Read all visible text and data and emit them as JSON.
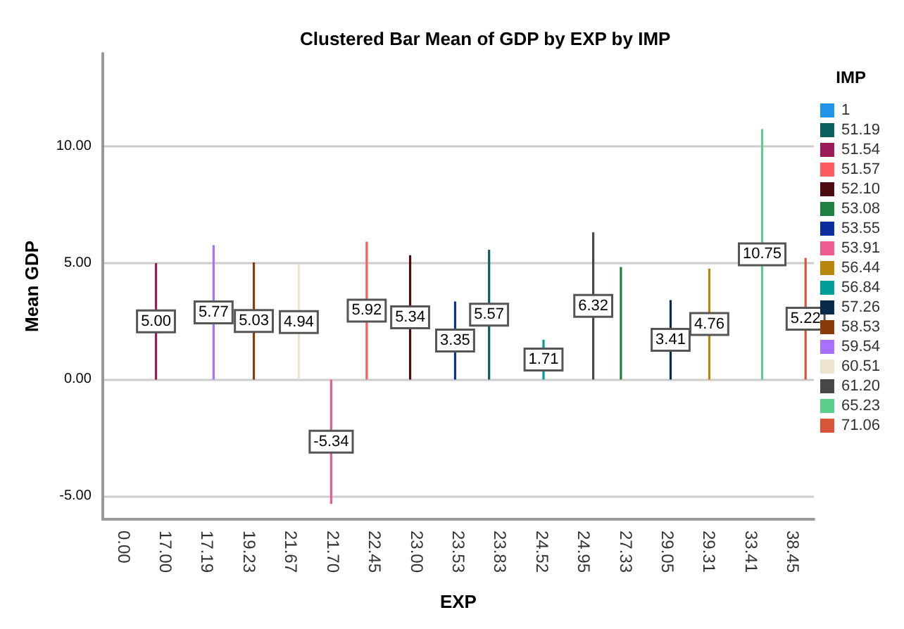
{
  "chart_data": {
    "type": "bar",
    "title": "Clustered Bar Mean of GDP by EXP by IMP",
    "xlabel": "EXP",
    "ylabel": "Mean GDP",
    "legend_title": "IMP",
    "categories": [
      "0.00",
      "17.00",
      "17.19",
      "19.23",
      "21.67",
      "21.70",
      "22.45",
      "23.00",
      "23.53",
      "23.83",
      "24.52",
      "24.95",
      "27.33",
      "29.05",
      "29.31",
      "33.41",
      "38.45"
    ],
    "series": [
      {
        "name": "1",
        "color": "#1f94e8",
        "values": [
          null,
          null,
          null,
          null,
          null,
          null,
          null,
          null,
          null,
          null,
          null,
          null,
          null,
          null,
          null,
          null,
          null
        ],
        "value_labels": [
          null,
          null,
          null,
          null,
          null,
          null,
          null,
          null,
          null,
          null,
          null,
          null,
          null,
          null,
          null,
          null,
          null
        ]
      },
      {
        "name": "51.19",
        "color": "#0b5e5e",
        "values": [
          null,
          null,
          null,
          null,
          null,
          null,
          null,
          null,
          null,
          5.57,
          null,
          null,
          null,
          null,
          null,
          null,
          null
        ],
        "value_labels": [
          null,
          null,
          null,
          null,
          null,
          null,
          null,
          null,
          null,
          "5.57",
          null,
          null,
          null,
          null,
          null,
          null,
          null
        ]
      },
      {
        "name": "51.54",
        "color": "#9c1a57",
        "values": [
          null,
          5.0,
          null,
          null,
          null,
          null,
          null,
          null,
          null,
          null,
          null,
          null,
          null,
          null,
          null,
          null,
          null
        ],
        "value_labels": [
          null,
          "5.00",
          null,
          null,
          null,
          null,
          null,
          null,
          null,
          null,
          null,
          null,
          null,
          null,
          null,
          null,
          null
        ]
      },
      {
        "name": "51.57",
        "color": "#ff5a5f",
        "values": [
          null,
          null,
          null,
          null,
          null,
          null,
          5.92,
          null,
          null,
          null,
          null,
          null,
          null,
          null,
          null,
          null,
          null
        ],
        "value_labels": [
          null,
          null,
          null,
          null,
          null,
          null,
          "5.92",
          null,
          null,
          null,
          null,
          null,
          null,
          null,
          null,
          null,
          null
        ]
      },
      {
        "name": "52.10",
        "color": "#4d0a0f",
        "values": [
          null,
          null,
          null,
          null,
          null,
          null,
          null,
          5.34,
          null,
          null,
          null,
          null,
          null,
          null,
          null,
          null,
          null
        ],
        "value_labels": [
          null,
          null,
          null,
          null,
          null,
          null,
          null,
          "5.34",
          null,
          null,
          null,
          null,
          null,
          null,
          null,
          null,
          null
        ]
      },
      {
        "name": "53.08",
        "color": "#1e8040",
        "values": [
          null,
          null,
          null,
          null,
          null,
          null,
          null,
          null,
          null,
          null,
          null,
          null,
          4.83,
          null,
          null,
          null,
          null
        ],
        "value_labels": [
          null,
          null,
          null,
          null,
          null,
          null,
          null,
          null,
          null,
          null,
          null,
          null,
          null,
          null,
          null,
          null,
          null
        ]
      },
      {
        "name": "53.55",
        "color": "#0a2ea0",
        "values": [
          null,
          null,
          null,
          null,
          null,
          null,
          null,
          null,
          3.35,
          null,
          null,
          null,
          null,
          null,
          null,
          null,
          null
        ],
        "value_labels": [
          null,
          null,
          null,
          null,
          null,
          null,
          null,
          null,
          "3.35",
          null,
          null,
          null,
          null,
          null,
          null,
          null,
          null
        ]
      },
      {
        "name": "53.91",
        "color": "#ef5c91",
        "values": [
          null,
          null,
          null,
          null,
          null,
          -5.34,
          null,
          null,
          null,
          null,
          null,
          null,
          null,
          null,
          null,
          null,
          null
        ],
        "value_labels": [
          null,
          null,
          null,
          null,
          null,
          "-5.34",
          null,
          null,
          null,
          null,
          null,
          null,
          null,
          null,
          null,
          null,
          null
        ]
      },
      {
        "name": "56.44",
        "color": "#b8860b",
        "values": [
          null,
          null,
          null,
          null,
          null,
          null,
          null,
          null,
          null,
          null,
          null,
          null,
          null,
          null,
          4.76,
          null,
          null
        ],
        "value_labels": [
          null,
          null,
          null,
          null,
          null,
          null,
          null,
          null,
          null,
          null,
          null,
          null,
          null,
          null,
          "4.76",
          null,
          null
        ]
      },
      {
        "name": "56.84",
        "color": "#009e99",
        "values": [
          null,
          null,
          null,
          null,
          null,
          null,
          null,
          null,
          null,
          null,
          1.71,
          null,
          null,
          null,
          null,
          null,
          null
        ],
        "value_labels": [
          null,
          null,
          null,
          null,
          null,
          null,
          null,
          null,
          null,
          null,
          "1.71",
          null,
          null,
          null,
          null,
          null,
          null
        ]
      },
      {
        "name": "57.26",
        "color": "#0a2a4a",
        "values": [
          null,
          null,
          null,
          null,
          null,
          null,
          null,
          null,
          null,
          null,
          null,
          null,
          null,
          3.41,
          null,
          null,
          null
        ],
        "value_labels": [
          null,
          null,
          null,
          null,
          null,
          null,
          null,
          null,
          null,
          null,
          null,
          null,
          null,
          "3.41",
          null,
          null,
          null
        ]
      },
      {
        "name": "58.53",
        "color": "#8b3a0a",
        "values": [
          null,
          null,
          null,
          5.03,
          null,
          null,
          null,
          null,
          null,
          null,
          null,
          null,
          null,
          null,
          null,
          null,
          null
        ],
        "value_labels": [
          null,
          null,
          null,
          "5.03",
          null,
          null,
          null,
          null,
          null,
          null,
          null,
          null,
          null,
          null,
          null,
          null,
          null
        ]
      },
      {
        "name": "59.54",
        "color": "#a970ff",
        "values": [
          null,
          null,
          5.77,
          null,
          null,
          null,
          null,
          null,
          null,
          null,
          null,
          null,
          null,
          null,
          null,
          null,
          null
        ],
        "value_labels": [
          null,
          null,
          "5.77",
          null,
          null,
          null,
          null,
          null,
          null,
          null,
          null,
          null,
          null,
          null,
          null,
          null,
          null
        ]
      },
      {
        "name": "60.51",
        "color": "#ede4d0",
        "values": [
          null,
          null,
          null,
          null,
          4.94,
          null,
          null,
          null,
          null,
          null,
          null,
          null,
          null,
          null,
          null,
          null,
          null
        ],
        "value_labels": [
          null,
          null,
          null,
          null,
          "4.94",
          null,
          null,
          null,
          null,
          null,
          null,
          null,
          null,
          null,
          null,
          null,
          null
        ]
      },
      {
        "name": "61.20",
        "color": "#474747",
        "values": [
          null,
          null,
          null,
          null,
          null,
          null,
          null,
          null,
          null,
          null,
          null,
          6.32,
          null,
          null,
          null,
          null,
          null
        ],
        "value_labels": [
          null,
          null,
          null,
          null,
          null,
          null,
          null,
          null,
          null,
          null,
          null,
          "6.32",
          null,
          null,
          null,
          null,
          null
        ]
      },
      {
        "name": "65.23",
        "color": "#5ccf8a",
        "values": [
          null,
          null,
          null,
          null,
          null,
          null,
          null,
          null,
          null,
          null,
          null,
          null,
          null,
          null,
          null,
          10.75,
          null
        ],
        "value_labels": [
          null,
          null,
          null,
          null,
          null,
          null,
          null,
          null,
          null,
          null,
          null,
          null,
          null,
          null,
          null,
          "10.75",
          null
        ]
      },
      {
        "name": "71.06",
        "color": "#d9553a",
        "values": [
          null,
          null,
          null,
          null,
          null,
          null,
          null,
          null,
          null,
          null,
          null,
          null,
          null,
          null,
          null,
          null,
          5.22
        ],
        "value_labels": [
          null,
          null,
          null,
          null,
          null,
          null,
          null,
          null,
          null,
          null,
          null,
          null,
          null,
          null,
          null,
          null,
          "5.22"
        ]
      }
    ],
    "ylim": [
      -6,
      14
    ],
    "yticks": [
      {
        "value": -5,
        "label": "-5.00"
      },
      {
        "value": 0,
        "label": "0.00"
      },
      {
        "value": 5,
        "label": "5.00"
      },
      {
        "value": 10,
        "label": "10.00"
      }
    ],
    "grid": "y",
    "legend": "right"
  }
}
